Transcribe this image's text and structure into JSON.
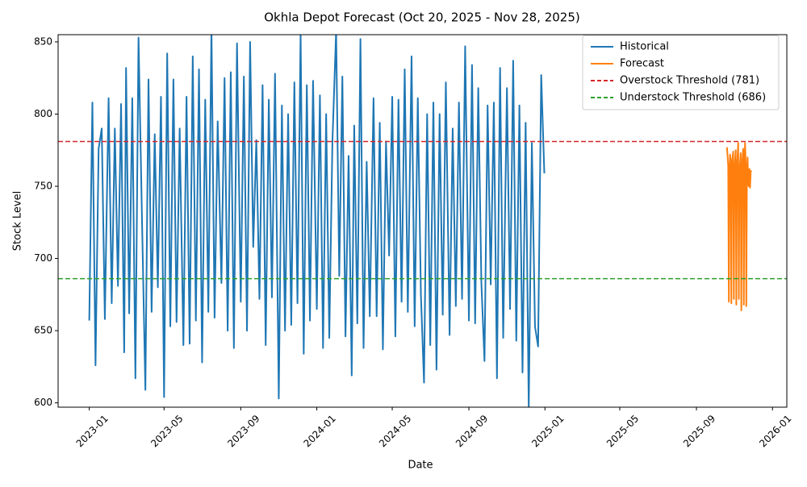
{
  "chart_data": {
    "type": "line",
    "title": "Okhla Depot Forecast (Oct 20, 2025 - Nov 28, 2025)",
    "x_label": "Date",
    "y_label": "Stock Level",
    "xlim": [
      "2022-11-12",
      "2026-01-24"
    ],
    "ylim": [
      597,
      855
    ],
    "xticks": [
      {
        "value": "2023-01-01",
        "label": "2023-01"
      },
      {
        "value": "2023-05-01",
        "label": "2023-05"
      },
      {
        "value": "2023-09-01",
        "label": "2023-09"
      },
      {
        "value": "2024-01-01",
        "label": "2024-01"
      },
      {
        "value": "2024-05-01",
        "label": "2024-05"
      },
      {
        "value": "2024-09-01",
        "label": "2024-09"
      },
      {
        "value": "2025-01-01",
        "label": "2025-01"
      },
      {
        "value": "2025-05-01",
        "label": "2025-05"
      },
      {
        "value": "2025-09-01",
        "label": "2025-09"
      },
      {
        "value": "2026-01-01",
        "label": "2026-01"
      }
    ],
    "yticks": [
      600,
      650,
      700,
      750,
      800,
      850
    ],
    "legend": "upper right",
    "series": [
      {
        "name": "Historical",
        "color": "#1f77b4",
        "x": [
          "2023-01-01",
          "2023-01-06",
          "2023-01-11",
          "2023-01-16",
          "2023-01-21",
          "2023-01-26",
          "2023-02-01",
          "2023-02-06",
          "2023-02-11",
          "2023-02-16",
          "2023-02-21",
          "2023-02-26",
          "2023-03-01",
          "2023-03-06",
          "2023-03-11",
          "2023-03-16",
          "2023-03-21",
          "2023-03-26",
          "2023-04-01",
          "2023-04-06",
          "2023-04-11",
          "2023-04-16",
          "2023-04-21",
          "2023-04-26",
          "2023-05-01",
          "2023-05-06",
          "2023-05-11",
          "2023-05-16",
          "2023-05-21",
          "2023-05-26",
          "2023-06-01",
          "2023-06-06",
          "2023-06-11",
          "2023-06-16",
          "2023-06-21",
          "2023-06-26",
          "2023-07-01",
          "2023-07-06",
          "2023-07-11",
          "2023-07-16",
          "2023-07-21",
          "2023-07-26",
          "2023-08-01",
          "2023-08-06",
          "2023-08-11",
          "2023-08-16",
          "2023-08-21",
          "2023-08-26",
          "2023-09-01",
          "2023-09-06",
          "2023-09-11",
          "2023-09-16",
          "2023-09-21",
          "2023-09-26",
          "2023-10-01",
          "2023-10-06",
          "2023-10-11",
          "2023-10-16",
          "2023-10-21",
          "2023-10-26",
          "2023-11-01",
          "2023-11-06",
          "2023-11-11",
          "2023-11-16",
          "2023-11-21",
          "2023-11-26",
          "2023-12-01",
          "2023-12-06",
          "2023-12-11",
          "2023-12-16",
          "2023-12-21",
          "2023-12-26",
          "2024-01-01",
          "2024-01-06",
          "2024-01-11",
          "2024-01-16",
          "2024-01-21",
          "2024-01-26",
          "2024-02-01",
          "2024-02-06",
          "2024-02-11",
          "2024-02-16",
          "2024-02-21",
          "2024-02-26",
          "2024-03-01",
          "2024-03-06",
          "2024-03-11",
          "2024-03-16",
          "2024-03-21",
          "2024-03-26",
          "2024-04-01",
          "2024-04-06",
          "2024-04-11",
          "2024-04-16",
          "2024-04-21",
          "2024-04-26",
          "2024-05-01",
          "2024-05-06",
          "2024-05-11",
          "2024-05-16",
          "2024-05-21",
          "2024-05-26",
          "2024-06-01",
          "2024-06-06",
          "2024-06-11",
          "2024-06-16",
          "2024-06-21",
          "2024-06-26",
          "2024-07-01",
          "2024-07-06",
          "2024-07-11",
          "2024-07-16",
          "2024-07-21",
          "2024-07-26",
          "2024-08-01",
          "2024-08-06",
          "2024-08-11",
          "2024-08-16",
          "2024-08-21",
          "2024-08-26",
          "2024-09-01",
          "2024-09-06",
          "2024-09-11",
          "2024-09-16",
          "2024-09-21",
          "2024-09-26",
          "2024-10-01",
          "2024-10-06",
          "2024-10-11",
          "2024-10-16",
          "2024-10-21",
          "2024-10-26",
          "2024-11-01",
          "2024-11-06",
          "2024-11-11",
          "2024-11-16",
          "2024-11-21",
          "2024-11-26",
          "2024-12-01",
          "2024-12-06",
          "2024-12-11",
          "2024-12-16",
          "2024-12-21",
          "2024-12-26",
          "2024-12-31"
        ],
        "values": [
          657,
          808,
          626,
          776,
          790,
          658,
          811,
          669,
          790,
          681,
          807,
          635,
          832,
          662,
          811,
          617,
          853,
          740,
          609,
          824,
          663,
          786,
          680,
          812,
          604,
          842,
          653,
          824,
          656,
          790,
          640,
          812,
          641,
          840,
          657,
          831,
          628,
          810,
          663,
          860,
          659,
          795,
          683,
          825,
          650,
          829,
          638,
          849,
          670,
          826,
          650,
          850,
          708,
          782,
          672,
          820,
          640,
          810,
          673,
          828,
          603,
          806,
          650,
          800,
          654,
          822,
          669,
          856,
          634,
          820,
          657,
          823,
          665,
          813,
          638,
          800,
          645,
          780,
          858,
          688,
          826,
          646,
          771,
          619,
          792,
          655,
          852,
          638,
          767,
          660,
          811,
          660,
          794,
          637,
          781,
          702,
          812,
          646,
          810,
          670,
          831,
          663,
          840,
          653,
          811,
          675,
          614,
          800,
          640,
          808,
          623,
          800,
          661,
          822,
          647,
          790,
          667,
          808,
          672,
          847,
          657,
          834,
          655,
          818,
          683,
          629,
          806,
          682,
          808,
          617,
          832,
          645,
          818,
          665,
          837,
          643,
          806,
          621,
          794,
          596,
          780,
          653,
          639,
          827,
          759
        ]
      },
      {
        "name": "Forecast",
        "color": "#ff7f0e",
        "x": [
          "2025-10-20",
          "2025-10-21",
          "2025-10-22",
          "2025-10-23",
          "2025-10-24",
          "2025-10-25",
          "2025-10-26",
          "2025-10-27",
          "2025-10-28",
          "2025-10-29",
          "2025-10-30",
          "2025-10-31",
          "2025-11-01",
          "2025-11-02",
          "2025-11-03",
          "2025-11-04",
          "2025-11-05",
          "2025-11-06",
          "2025-11-07",
          "2025-11-08",
          "2025-11-09",
          "2025-11-10",
          "2025-11-11",
          "2025-11-12",
          "2025-11-13",
          "2025-11-14",
          "2025-11-15",
          "2025-11-16",
          "2025-11-17",
          "2025-11-18",
          "2025-11-19",
          "2025-11-20",
          "2025-11-21",
          "2025-11-22",
          "2025-11-23",
          "2025-11-24",
          "2025-11-25",
          "2025-11-26",
          "2025-11-27",
          "2025-11-28"
        ],
        "values": [
          777,
          771,
          764,
          670,
          760,
          772,
          768,
          669,
          765,
          770,
          774,
          672,
          760,
          768,
          775,
          668,
          762,
          770,
          780,
          672,
          758,
          766,
          773,
          664,
          759,
          770,
          776,
          668,
          762,
          780,
          765,
          667,
          760,
          770,
          752,
          750,
          762,
          749,
          760,
          761
        ]
      }
    ],
    "thresholds": [
      {
        "name": "Overstock Threshold (781)",
        "value": 781,
        "color": "#d62728"
      },
      {
        "name": "Understock Threshold (686)",
        "value": 686,
        "color": "#2ca02c"
      }
    ]
  }
}
